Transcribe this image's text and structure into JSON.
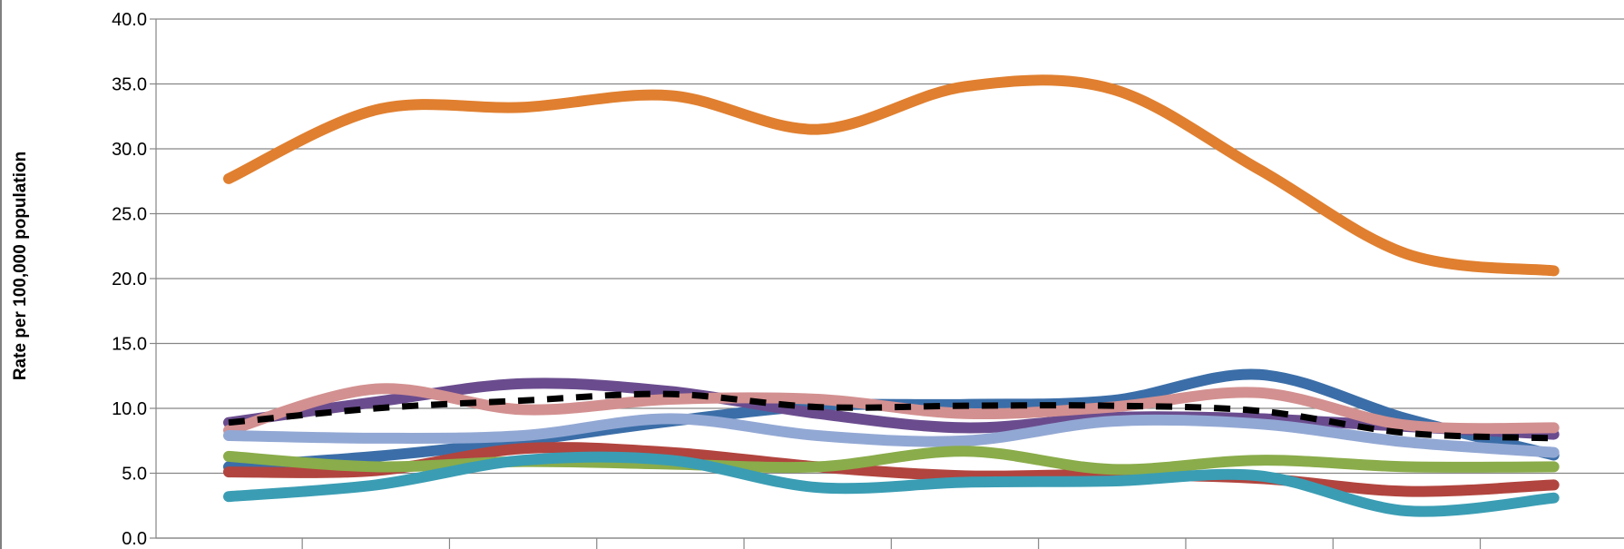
{
  "chart_data": {
    "type": "line",
    "title": "",
    "xlabel": "",
    "ylabel": "Rate per 100,000 population",
    "ylim": [
      0,
      40
    ],
    "yticks": [
      "0.0",
      "5.0",
      "10.0",
      "15.0",
      "20.0",
      "25.0",
      "30.0",
      "35.0",
      "40.0"
    ],
    "grid": true,
    "legend": "none",
    "x": [
      1,
      2,
      3,
      4,
      5,
      6,
      7,
      8,
      9,
      10
    ],
    "series": [
      {
        "color": "#e07f2f",
        "dash": false,
        "values": [
          27.7,
          33.0,
          33.2,
          34.1,
          31.5,
          34.8,
          34.6,
          28.4,
          21.9,
          20.6
        ]
      },
      {
        "color": "#3b6ea8",
        "dash": false,
        "values": [
          5.5,
          6.3,
          7.5,
          9.0,
          10.2,
          10.3,
          10.6,
          12.6,
          9.2,
          6.4
        ]
      },
      {
        "color": "#6a4c8e",
        "dash": false,
        "values": [
          8.9,
          10.5,
          11.9,
          11.3,
          9.6,
          8.5,
          9.3,
          9.2,
          8.6,
          8.0
        ]
      },
      {
        "color": "#d39090",
        "dash": false,
        "values": [
          8.3,
          11.5,
          9.9,
          10.7,
          10.7,
          9.6,
          10.1,
          11.2,
          8.7,
          8.5
        ]
      },
      {
        "color": "#000000",
        "dash": true,
        "values": [
          8.9,
          10.0,
          10.6,
          11.1,
          10.1,
          10.2,
          10.2,
          9.8,
          8.1,
          7.7
        ]
      },
      {
        "color": "#92a8d4",
        "dash": false,
        "values": [
          7.9,
          7.7,
          7.9,
          9.2,
          7.9,
          7.5,
          9.0,
          8.8,
          7.4,
          6.6
        ]
      },
      {
        "color": "#b1443e",
        "dash": false,
        "values": [
          5.1,
          5.2,
          6.9,
          6.6,
          5.5,
          4.8,
          4.9,
          4.6,
          3.6,
          4.1
        ]
      },
      {
        "color": "#8aac4a",
        "dash": false,
        "values": [
          6.3,
          5.5,
          5.9,
          5.7,
          5.5,
          6.7,
          5.3,
          6.0,
          5.5,
          5.5
        ]
      },
      {
        "color": "#3a9db4",
        "dash": false,
        "values": [
          3.2,
          4.1,
          6.0,
          6.0,
          3.9,
          4.3,
          4.4,
          4.8,
          2.1,
          3.1
        ]
      }
    ]
  }
}
